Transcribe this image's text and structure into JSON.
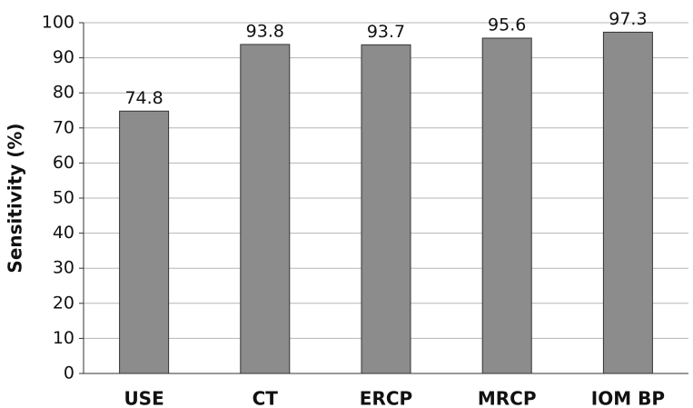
{
  "chart_data": {
    "type": "bar",
    "y_label": "Sensitivity (%)",
    "categories": [
      "USE",
      "CT",
      "ERCP",
      "MRCP",
      "IOM BP"
    ],
    "values": [
      74.8,
      93.8,
      93.7,
      95.6,
      97.3
    ],
    "color": "#8c8c8c",
    "ylim": [
      0,
      100
    ],
    "yticks": [
      0,
      10,
      20,
      30,
      40,
      50,
      60,
      70,
      80,
      90,
      100
    ],
    "grid": true
  }
}
